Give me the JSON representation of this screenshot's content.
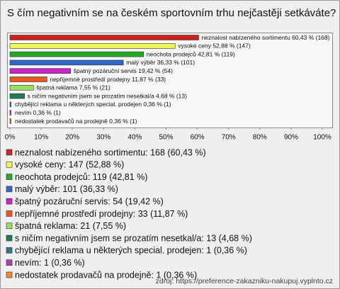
{
  "chart_data": {
    "type": "bar",
    "orientation": "horizontal",
    "title": "S čím negativním se na českém sportovním trhu nejčastěji setkáváte?",
    "categories": [
      "neznalost nabízeného sortimentu",
      "vysoké ceny",
      "neochota prodejců",
      "malý výběr",
      "špatný pozáruční servis",
      "nepříjemné prostředí prodejny",
      "špatná reklama",
      "s ničím negativním jsem se prozatím nesetkal/a",
      "chybějící reklama u některých special. prodejen",
      "nevím",
      "nedostatek prodavačů na prodejně"
    ],
    "values": [
      60.43,
      52.88,
      42.81,
      36.33,
      19.42,
      11.87,
      7.55,
      4.68,
      0.36,
      0.36,
      0.36
    ],
    "value_labels": [
      "neznalost nabízeného sortimentu 60,43 % (168)",
      "vysoké ceny 52,88 % (147)",
      "neochota prodejců 42,81 % (119)",
      "malý výběr 36,33 % (101)",
      "špatný pozáruční servis 19,42 % (54)",
      "nepříjemné prostředí prodejny 11,87 % (33)",
      "špatná reklama 7,55 % (21)",
      "s ničím negativním jsem se prozatím nesetkal/a 4,68 % (13)",
      "chybějící reklama u některých special. prodejen 0,36 % (1)",
      "nevím 0,36 % (1)",
      "nedostatek prodavačů na prodejně 0,36 % (1)"
    ],
    "legend_labels": [
      "neznalost nabízeného sortimentu: 168 (60,43 %)",
      "vysoké ceny: 147 (52,88 %)",
      "neochota prodejců: 119 (42,81 %)",
      "malý výběr: 101 (36,33 %)",
      "špatný pozáruční servis: 54 (19,42 %)",
      "nepříjemné prostředí prodejny: 33 (11,87 %)",
      "špatná reklama: 21 (7,55 %)",
      "s ničím negativním jsem se prozatím nesetkal/a: 13 (4,68 %)",
      "chybějící reklama u některých special. prodejen: 1 (0,36 %)",
      "nevím: 1 (0,36 %)",
      "nedostatek prodavačů na prodejně: 1 (0,36 %)"
    ],
    "colors": [
      "#cc2222",
      "#f2f25a",
      "#22aa22",
      "#3366cc",
      "#cc22cc",
      "#ee5522",
      "#99dd66",
      "#1f7a55",
      "#337788",
      "#aa44aa",
      "#ee8833"
    ],
    "xlim": [
      0,
      100
    ],
    "xticks": [
      {
        "value": 0,
        "label": "0%"
      },
      {
        "value": 10,
        "label": "10%"
      },
      {
        "value": 20,
        "label": "20%"
      },
      {
        "value": 30,
        "label": "30%"
      },
      {
        "value": 40,
        "label": "40%"
      },
      {
        "value": 50,
        "label": "50%"
      },
      {
        "value": 60,
        "label": "60%"
      },
      {
        "value": 70,
        "label": "70%"
      },
      {
        "value": 80,
        "label": "80%"
      },
      {
        "value": 90,
        "label": "90%"
      },
      {
        "value": 100,
        "label": "100%"
      }
    ],
    "source": "zdroj: https://preference-zakazniku-nakupuj.vyplnto.cz"
  }
}
